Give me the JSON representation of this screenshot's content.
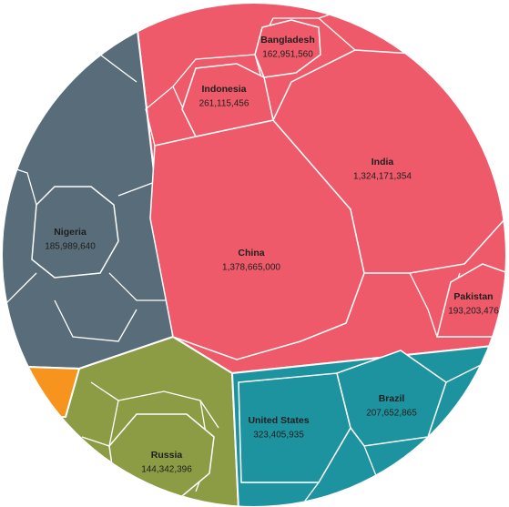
{
  "chart_data": {
    "type": "voronoi-treemap",
    "groups": [
      {
        "color": "#ef5a6b",
        "categories": [
          "China",
          "India",
          "Indonesia",
          "Bangladesh",
          "Pakistan"
        ],
        "values": [
          1378665000,
          1324171354,
          261115456,
          162951560,
          193203476
        ],
        "value_labels": [
          "1,378,665,000",
          "1,324,171,354",
          "261,115,456",
          "162,951,560",
          "193,203,476"
        ]
      },
      {
        "color": "#586d79",
        "categories": [
          "Nigeria"
        ],
        "values": [
          185989640
        ],
        "value_labels": [
          "185,989,640"
        ]
      },
      {
        "color": "#8b9c44",
        "categories": [
          "Russia"
        ],
        "values": [
          144342396
        ],
        "value_labels": [
          "144,342,396"
        ]
      },
      {
        "color": "#1e93a0",
        "categories": [
          "United States",
          "Brazil"
        ],
        "values": [
          323405935,
          207652865
        ],
        "value_labels": [
          "323,405,935",
          "207,652,865"
        ]
      },
      {
        "color": "#f7941d",
        "categories": [],
        "values": [],
        "value_labels": []
      }
    ]
  }
}
